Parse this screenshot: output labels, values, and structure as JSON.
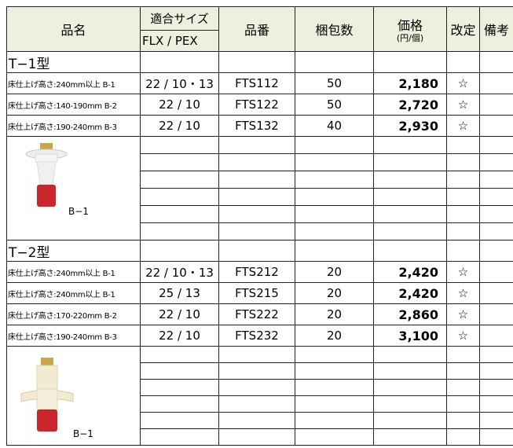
{
  "header": {
    "name": "品名",
    "size": "適合サイズ",
    "size_sub": "FLX / PEX",
    "code": "品番",
    "qty": "梱包数",
    "price": "価格",
    "price_unit": "(円/個)",
    "revision": "改定",
    "note": "備考"
  },
  "sections": [
    {
      "title": "T−1型",
      "image_label": "B−1",
      "rows": [
        [
          "床仕上げ高さ:240mm以上 B-1",
          "22 / 10・13",
          "FTS112",
          "50",
          "2,180",
          "☆"
        ],
        [
          "床仕上げ高さ:140-190mm B-2",
          "22 / 10",
          "FTS122",
          "50",
          "2,720",
          "☆"
        ],
        [
          "床仕上げ高さ:190-240mm B-3",
          "22 / 10",
          "FTS132",
          "40",
          "2,930",
          "☆"
        ]
      ]
    },
    {
      "title": "T−2型",
      "image_label": "B−1",
      "rows": [
        [
          "床仕上げ高さ:240mm以上 B-1",
          "22 / 10・13",
          "FTS212",
          "20",
          "2,420",
          "☆"
        ],
        [
          "床仕上げ高さ:240mm以上 B-1",
          "25 / 13",
          "FTS215",
          "20",
          "2,420",
          "☆"
        ],
        [
          "床仕上げ高さ:170-220mm B-2",
          "22 / 10",
          "FTS222",
          "20",
          "2,860",
          "☆"
        ],
        [
          "床仕上げ高さ:190-240mm B-3",
          "22 / 10",
          "FTS232",
          "20",
          "3,100",
          "☆"
        ]
      ]
    }
  ]
}
